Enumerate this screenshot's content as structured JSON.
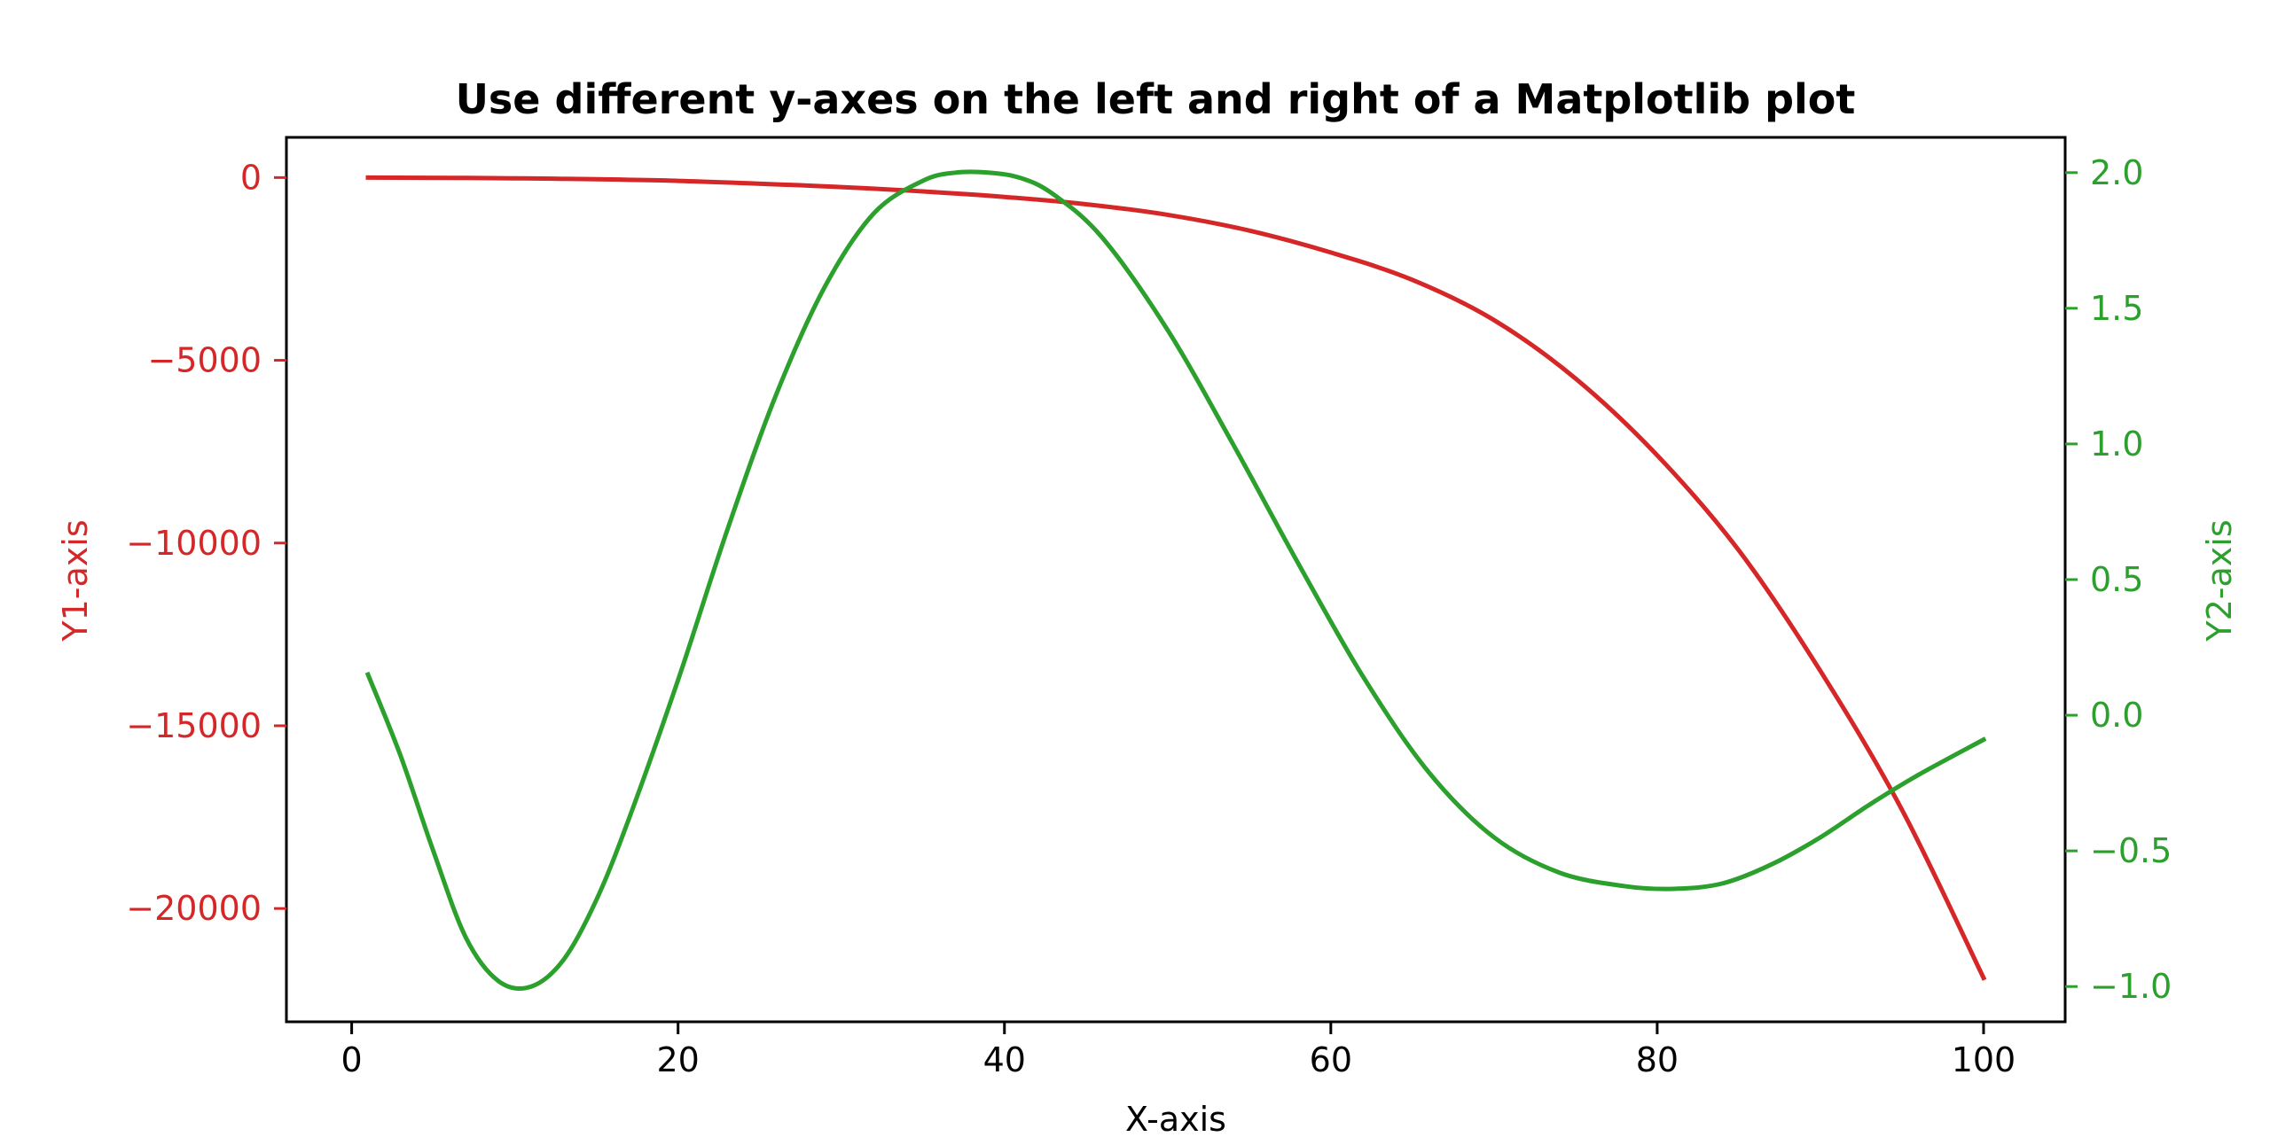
{
  "chart_data": {
    "type": "line",
    "title": "Use different y-axes on the left and right of a Matplotlib plot",
    "xlabel": "X-axis",
    "ylabel_left": "Y1-axis",
    "ylabel_right": "Y2-axis",
    "xlim": [
      -4,
      105
    ],
    "ylim_left": [
      -23100,
      1100
    ],
    "ylim_right": [
      -1.13,
      2.13
    ],
    "x_ticks": [
      0,
      20,
      40,
      60,
      80,
      100
    ],
    "y_left_ticks": [
      0,
      -5000,
      -10000,
      -15000,
      -20000
    ],
    "y_left_tick_labels": [
      "0",
      "−5000",
      "−10000",
      "−15000",
      "−20000"
    ],
    "y_right_ticks": [
      2.0,
      1.5,
      1.0,
      0.5,
      0.0,
      -0.5,
      -1.0
    ],
    "y_right_tick_labels": [
      "2.0",
      "1.5",
      "1.0",
      "0.5",
      "0.0",
      "−0.5",
      "−1.0"
    ],
    "grid": false,
    "colors": {
      "y1": "#d62728",
      "y2": "#2ca02c",
      "axes": "#000000"
    },
    "series": [
      {
        "axis": "left",
        "color": "#d62728",
        "x": [
          1,
          10,
          20,
          30,
          35,
          40,
          45,
          50,
          55,
          60,
          65,
          70,
          75,
          80,
          85,
          90,
          95,
          100
        ],
        "y": [
          0,
          -20,
          -90,
          -260,
          -380,
          -530,
          -730,
          -1020,
          -1450,
          -2050,
          -2800,
          -3900,
          -5500,
          -7600,
          -10200,
          -13500,
          -17300,
          -21900
        ]
      },
      {
        "axis": "right",
        "color": "#2ca02c",
        "x": [
          1,
          3,
          5,
          7,
          9,
          11,
          13,
          15,
          17,
          20,
          23,
          26,
          29,
          32,
          35,
          37,
          39,
          41,
          43,
          46,
          50,
          54,
          58,
          62,
          66,
          70,
          74,
          78,
          81,
          84,
          87,
          90,
          93,
          96,
          100
        ],
        "y": [
          0.15,
          -0.15,
          -0.5,
          -0.82,
          -0.98,
          -1.0,
          -0.9,
          -0.68,
          -0.38,
          0.13,
          0.68,
          1.18,
          1.58,
          1.85,
          1.97,
          2.0,
          2.0,
          1.98,
          1.92,
          1.76,
          1.42,
          1.0,
          0.56,
          0.14,
          -0.21,
          -0.45,
          -0.58,
          -0.63,
          -0.64,
          -0.62,
          -0.55,
          -0.45,
          -0.33,
          -0.22,
          -0.09
        ]
      }
    ]
  }
}
